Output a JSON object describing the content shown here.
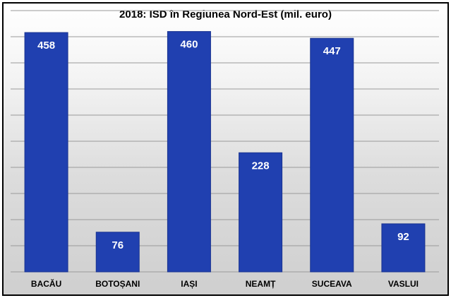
{
  "chart_data": {
    "type": "bar",
    "title": "2018: ISD în Regiunea Nord-Est (mil. euro)",
    "categories": [
      "BACĂU",
      "BOTOȘANI",
      "IAȘI",
      "NEAMȚ",
      "SUCEAVA",
      "VASLUI"
    ],
    "values": [
      458,
      76,
      460,
      228,
      447,
      92
    ],
    "ylim": [
      0,
      500
    ],
    "grid": true,
    "bar_color": "#2040b0",
    "label_color": "#ffffff"
  }
}
